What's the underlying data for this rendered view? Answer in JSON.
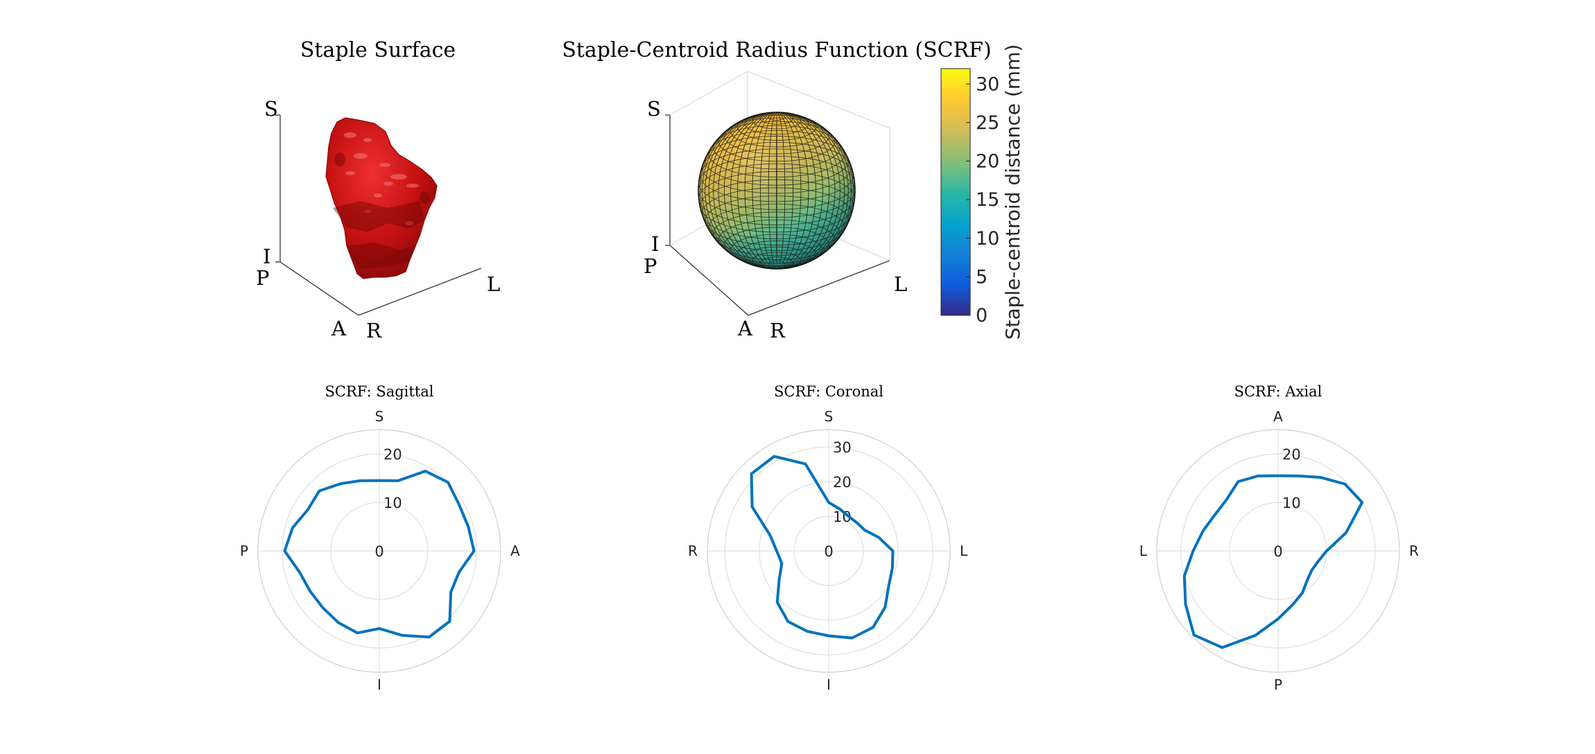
{
  "figure": {
    "surface": {
      "title": "Staple Surface",
      "axis_labels": {
        "top": "S",
        "bottom": "I",
        "left_front": "P",
        "front_a": "A",
        "front_r": "R",
        "right": "L"
      },
      "surface_color": "#cc1414"
    },
    "sphere": {
      "title": "Staple-Centroid Radius Function (SCRF)",
      "axis_labels": {
        "top": "S",
        "bottom": "I",
        "left_front": "P",
        "front_a": "A",
        "front_r": "R",
        "right": "L"
      },
      "colorbar": {
        "ticks": [
          "0",
          "5",
          "10",
          "15",
          "20",
          "25",
          "30"
        ],
        "label": "Staple-centroid distance (mm)",
        "colormap": "parula",
        "range": [
          0,
          32
        ]
      }
    }
  },
  "chart_data": [
    {
      "type": "polar-line",
      "title": "SCRF: Sagittal",
      "directions": {
        "top": "S",
        "bottom": "I",
        "left": "P",
        "right": "A"
      },
      "r_ticks": [
        "0",
        "10",
        "20"
      ],
      "rlim": [
        0,
        25
      ],
      "color": "#0072bd",
      "theta_deg": [
        0,
        15,
        30,
        45,
        60,
        75,
        90,
        105,
        120,
        135,
        150,
        165,
        180,
        195,
        210,
        225,
        240,
        255,
        270,
        285,
        300,
        315,
        330,
        345
      ],
      "r": [
        19.5,
        19,
        19,
        20,
        19,
        15,
        14.5,
        15,
        16,
        17.5,
        17,
        18.5,
        19.5,
        17,
        16.5,
        16.5,
        17,
        17.5,
        16,
        18,
        20.5,
        20.5,
        17,
        17
      ]
    },
    {
      "type": "polar-line",
      "title": "SCRF: Coronal",
      "directions": {
        "top": "S",
        "bottom": "I",
        "left": "R",
        "right": "L"
      },
      "r_ticks": [
        "0",
        "10",
        "20",
        "30"
      ],
      "rlim": [
        0,
        35
      ],
      "color": "#0072bd",
      "theta_deg": [
        0,
        15,
        30,
        45,
        60,
        75,
        90,
        105,
        120,
        135,
        150,
        165,
        180,
        195,
        210,
        225,
        240,
        255,
        270,
        285,
        300,
        315,
        330,
        345
      ],
      "r": [
        18.5,
        15,
        12,
        11.5,
        11.5,
        12.5,
        14,
        26,
        31.5,
        31.5,
        25.5,
        17.5,
        15,
        14,
        16.5,
        21,
        23.5,
        24,
        24.5,
        26,
        25.5,
        23,
        20,
        19
      ]
    },
    {
      "type": "polar-line",
      "title": "SCRF: Axial",
      "directions": {
        "top": "A",
        "bottom": "P",
        "left": "L",
        "right": "R"
      },
      "r_ticks": [
        "0",
        "10",
        "20"
      ],
      "rlim": [
        0,
        25
      ],
      "color": "#0072bd",
      "theta_deg": [
        0,
        15,
        30,
        45,
        60,
        75,
        90,
        105,
        120,
        135,
        150,
        165,
        180,
        195,
        210,
        225,
        240,
        255,
        270,
        285,
        300,
        315,
        330,
        345
      ],
      "r": [
        10,
        14.5,
        20,
        19.5,
        17.5,
        16,
        15.5,
        16,
        16.5,
        15,
        15,
        16,
        17.5,
        20,
        22,
        24.5,
        23,
        18,
        14,
        11.5,
        10,
        8.5,
        8,
        8.5
      ]
    }
  ]
}
